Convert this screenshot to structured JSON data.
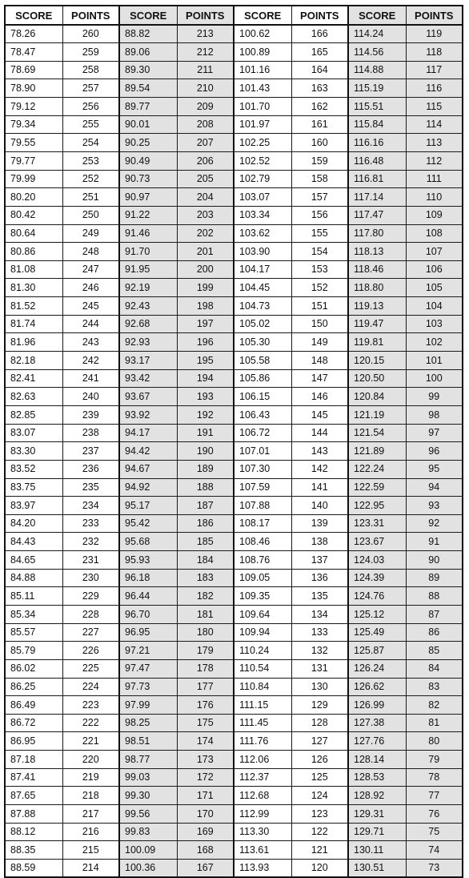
{
  "headers": [
    "SCORE",
    "POINTS",
    "SCORE",
    "POINTS",
    "SCORE",
    "POINTS",
    "SCORE",
    "POINTS"
  ],
  "rows": [
    [
      "78.26",
      "260",
      "88.82",
      "213",
      "100.62",
      "166",
      "114.24",
      "119"
    ],
    [
      "78.47",
      "259",
      "89.06",
      "212",
      "100.89",
      "165",
      "114.56",
      "118"
    ],
    [
      "78.69",
      "258",
      "89.30",
      "211",
      "101.16",
      "164",
      "114.88",
      "117"
    ],
    [
      "78.90",
      "257",
      "89.54",
      "210",
      "101.43",
      "163",
      "115.19",
      "116"
    ],
    [
      "79.12",
      "256",
      "89.77",
      "209",
      "101.70",
      "162",
      "115.51",
      "115"
    ],
    [
      "79.34",
      "255",
      "90.01",
      "208",
      "101.97",
      "161",
      "115.84",
      "114"
    ],
    [
      "79.55",
      "254",
      "90.25",
      "207",
      "102.25",
      "160",
      "116.16",
      "113"
    ],
    [
      "79.77",
      "253",
      "90.49",
      "206",
      "102.52",
      "159",
      "116.48",
      "112"
    ],
    [
      "79.99",
      "252",
      "90.73",
      "205",
      "102.79",
      "158",
      "116.81",
      "111"
    ],
    [
      "80.20",
      "251",
      "90.97",
      "204",
      "103.07",
      "157",
      "117.14",
      "110"
    ],
    [
      "80.42",
      "250",
      "91.22",
      "203",
      "103.34",
      "156",
      "117.47",
      "109"
    ],
    [
      "80.64",
      "249",
      "91.46",
      "202",
      "103.62",
      "155",
      "117.80",
      "108"
    ],
    [
      "80.86",
      "248",
      "91.70",
      "201",
      "103.90",
      "154",
      "118.13",
      "107"
    ],
    [
      "81.08",
      "247",
      "91.95",
      "200",
      "104.17",
      "153",
      "118.46",
      "106"
    ],
    [
      "81.30",
      "246",
      "92.19",
      "199",
      "104.45",
      "152",
      "118.80",
      "105"
    ],
    [
      "81.52",
      "245",
      "92.43",
      "198",
      "104.73",
      "151",
      "119.13",
      "104"
    ],
    [
      "81.74",
      "244",
      "92.68",
      "197",
      "105.02",
      "150",
      "119.47",
      "103"
    ],
    [
      "81.96",
      "243",
      "92.93",
      "196",
      "105.30",
      "149",
      "119.81",
      "102"
    ],
    [
      "82.18",
      "242",
      "93.17",
      "195",
      "105.58",
      "148",
      "120.15",
      "101"
    ],
    [
      "82.41",
      "241",
      "93.42",
      "194",
      "105.86",
      "147",
      "120.50",
      "100"
    ],
    [
      "82.63",
      "240",
      "93.67",
      "193",
      "106.15",
      "146",
      "120.84",
      "99"
    ],
    [
      "82.85",
      "239",
      "93.92",
      "192",
      "106.43",
      "145",
      "121.19",
      "98"
    ],
    [
      "83.07",
      "238",
      "94.17",
      "191",
      "106.72",
      "144",
      "121.54",
      "97"
    ],
    [
      "83.30",
      "237",
      "94.42",
      "190",
      "107.01",
      "143",
      "121.89",
      "96"
    ],
    [
      "83.52",
      "236",
      "94.67",
      "189",
      "107.30",
      "142",
      "122.24",
      "95"
    ],
    [
      "83.75",
      "235",
      "94.92",
      "188",
      "107.59",
      "141",
      "122.59",
      "94"
    ],
    [
      "83.97",
      "234",
      "95.17",
      "187",
      "107.88",
      "140",
      "122.95",
      "93"
    ],
    [
      "84.20",
      "233",
      "95.42",
      "186",
      "108.17",
      "139",
      "123.31",
      "92"
    ],
    [
      "84.43",
      "232",
      "95.68",
      "185",
      "108.46",
      "138",
      "123.67",
      "91"
    ],
    [
      "84.65",
      "231",
      "95.93",
      "184",
      "108.76",
      "137",
      "124.03",
      "90"
    ],
    [
      "84.88",
      "230",
      "96.18",
      "183",
      "109.05",
      "136",
      "124.39",
      "89"
    ],
    [
      "85.11",
      "229",
      "96.44",
      "182",
      "109.35",
      "135",
      "124.76",
      "88"
    ],
    [
      "85.34",
      "228",
      "96.70",
      "181",
      "109.64",
      "134",
      "125.12",
      "87"
    ],
    [
      "85.57",
      "227",
      "96.95",
      "180",
      "109.94",
      "133",
      "125.49",
      "86"
    ],
    [
      "85.79",
      "226",
      "97.21",
      "179",
      "110.24",
      "132",
      "125.87",
      "85"
    ],
    [
      "86.02",
      "225",
      "97.47",
      "178",
      "110.54",
      "131",
      "126.24",
      "84"
    ],
    [
      "86.25",
      "224",
      "97.73",
      "177",
      "110.84",
      "130",
      "126.62",
      "83"
    ],
    [
      "86.49",
      "223",
      "97.99",
      "176",
      "111.15",
      "129",
      "126.99",
      "82"
    ],
    [
      "86.72",
      "222",
      "98.25",
      "175",
      "111.45",
      "128",
      "127.38",
      "81"
    ],
    [
      "86.95",
      "221",
      "98.51",
      "174",
      "111.76",
      "127",
      "127.76",
      "80"
    ],
    [
      "87.18",
      "220",
      "98.77",
      "173",
      "112.06",
      "126",
      "128.14",
      "79"
    ],
    [
      "87.41",
      "219",
      "99.03",
      "172",
      "112.37",
      "125",
      "128.53",
      "78"
    ],
    [
      "87.65",
      "218",
      "99.30",
      "171",
      "112.68",
      "124",
      "128.92",
      "77"
    ],
    [
      "87.88",
      "217",
      "99.56",
      "170",
      "112.99",
      "123",
      "129.31",
      "76"
    ],
    [
      "88.12",
      "216",
      "99.83",
      "169",
      "113.30",
      "122",
      "129.71",
      "75"
    ],
    [
      "88.35",
      "215",
      "100.09",
      "168",
      "113.61",
      "121",
      "130.11",
      "74"
    ],
    [
      "88.59",
      "214",
      "100.36",
      "167",
      "113.93",
      "120",
      "130.51",
      "73"
    ]
  ],
  "colors": {
    "shaded_column_fill": "#e2e2e2",
    "rule_color": "#111111",
    "text_color": "#111111"
  }
}
